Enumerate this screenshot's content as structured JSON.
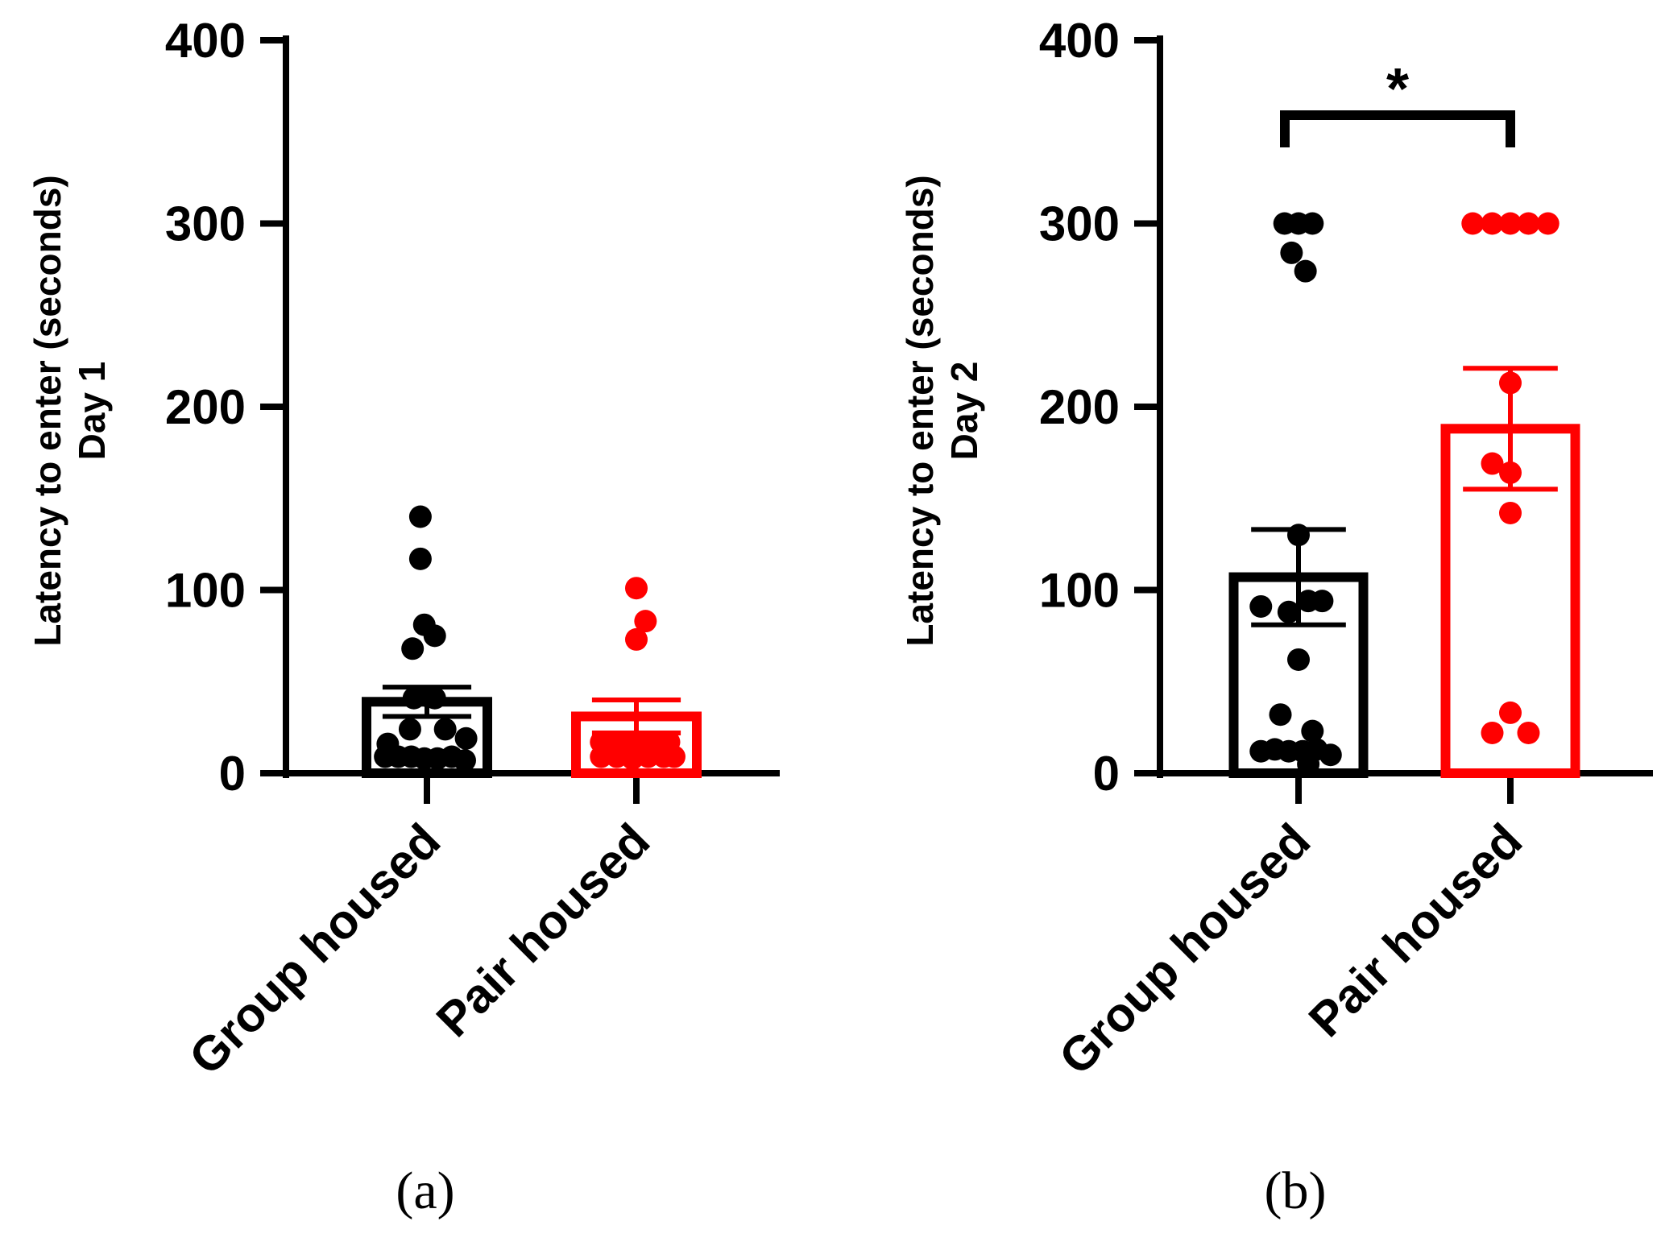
{
  "chart_data": [
    {
      "type": "bar",
      "panel_label": "(a)",
      "ylabel_lines": [
        "Latency to enter (seconds)",
        "Day 1"
      ],
      "ylim": [
        0,
        400
      ],
      "yticks": [
        0,
        100,
        200,
        300,
        400
      ],
      "categories": [
        "Group housed",
        "Pair housed"
      ],
      "series": [
        {
          "name": "Group housed",
          "color": "#000000",
          "mean": 39,
          "sem": 8,
          "points": [
            {
              "x": -0.05,
              "y": 140
            },
            {
              "x": -0.05,
              "y": 117
            },
            {
              "x": -0.02,
              "y": 81
            },
            {
              "x": -0.11,
              "y": 68
            },
            {
              "x": 0.06,
              "y": 75
            },
            {
              "x": -0.1,
              "y": 41
            },
            {
              "x": 0.06,
              "y": 41
            },
            {
              "x": 0.01,
              "y": 42
            },
            {
              "x": -0.3,
              "y": 16
            },
            {
              "x": 0.3,
              "y": 19
            },
            {
              "x": -0.13,
              "y": 24
            },
            {
              "x": 0.14,
              "y": 24
            },
            {
              "x": -0.32,
              "y": 9
            },
            {
              "x": -0.22,
              "y": 9
            },
            {
              "x": -0.12,
              "y": 9
            },
            {
              "x": -0.02,
              "y": 8
            },
            {
              "x": 0.08,
              "y": 8
            },
            {
              "x": 0.19,
              "y": 9
            },
            {
              "x": 0.29,
              "y": 7
            }
          ]
        },
        {
          "name": "Pair housed",
          "color": "#ff0000",
          "mean": 31,
          "sem": 9,
          "points": [
            {
              "x": 0.0,
              "y": 101
            },
            {
              "x": 0.07,
              "y": 83
            },
            {
              "x": 0.0,
              "y": 73
            },
            {
              "x": -0.27,
              "y": 17
            },
            {
              "x": -0.17,
              "y": 17
            },
            {
              "x": -0.07,
              "y": 17
            },
            {
              "x": 0.03,
              "y": 16
            },
            {
              "x": 0.14,
              "y": 17
            },
            {
              "x": 0.25,
              "y": 17
            },
            {
              "x": -0.27,
              "y": 9
            },
            {
              "x": -0.15,
              "y": 9
            },
            {
              "x": -0.03,
              "y": 8
            },
            {
              "x": 0.09,
              "y": 9
            },
            {
              "x": 0.21,
              "y": 9
            },
            {
              "x": 0.29,
              "y": 9
            }
          ]
        }
      ]
    },
    {
      "type": "bar",
      "panel_label": "(b)",
      "ylabel_lines": [
        "Latency to enter (seconds)",
        "Day 2"
      ],
      "ylim": [
        0,
        400
      ],
      "yticks": [
        0,
        100,
        200,
        300,
        400
      ],
      "categories": [
        "Group housed",
        "Pair housed"
      ],
      "significance": {
        "label": "*",
        "between": [
          "Group housed",
          "Pair housed"
        ]
      },
      "series": [
        {
          "name": "Group housed",
          "color": "#000000",
          "mean": 107,
          "sem": 26,
          "points": [
            {
              "x": -0.1,
              "y": 300
            },
            {
              "x": 0.0,
              "y": 300
            },
            {
              "x": 0.1,
              "y": 300
            },
            {
              "x": -0.05,
              "y": 284
            },
            {
              "x": 0.05,
              "y": 274
            },
            {
              "x": 0.0,
              "y": 130
            },
            {
              "x": -0.27,
              "y": 91
            },
            {
              "x": -0.07,
              "y": 88
            },
            {
              "x": 0.07,
              "y": 94
            },
            {
              "x": 0.17,
              "y": 94
            },
            {
              "x": 0.0,
              "y": 62
            },
            {
              "x": -0.13,
              "y": 32
            },
            {
              "x": 0.1,
              "y": 23
            },
            {
              "x": -0.27,
              "y": 12
            },
            {
              "x": -0.17,
              "y": 13
            },
            {
              "x": -0.07,
              "y": 12
            },
            {
              "x": 0.03,
              "y": 12
            },
            {
              "x": 0.13,
              "y": 13
            },
            {
              "x": 0.23,
              "y": 10
            },
            {
              "x": 0.07,
              "y": 5
            }
          ]
        },
        {
          "name": "Pair housed",
          "color": "#ff0000",
          "mean": 188,
          "sem": 33,
          "points": [
            {
              "x": -0.27,
              "y": 300
            },
            {
              "x": -0.13,
              "y": 300
            },
            {
              "x": 0.0,
              "y": 300
            },
            {
              "x": 0.13,
              "y": 300
            },
            {
              "x": 0.27,
              "y": 300
            },
            {
              "x": 0.0,
              "y": 213
            },
            {
              "x": -0.13,
              "y": 169
            },
            {
              "x": 0.0,
              "y": 164
            },
            {
              "x": 0.0,
              "y": 142
            },
            {
              "x": 0.0,
              "y": 33
            },
            {
              "x": -0.13,
              "y": 22
            },
            {
              "x": 0.13,
              "y": 22
            }
          ]
        }
      ]
    }
  ]
}
